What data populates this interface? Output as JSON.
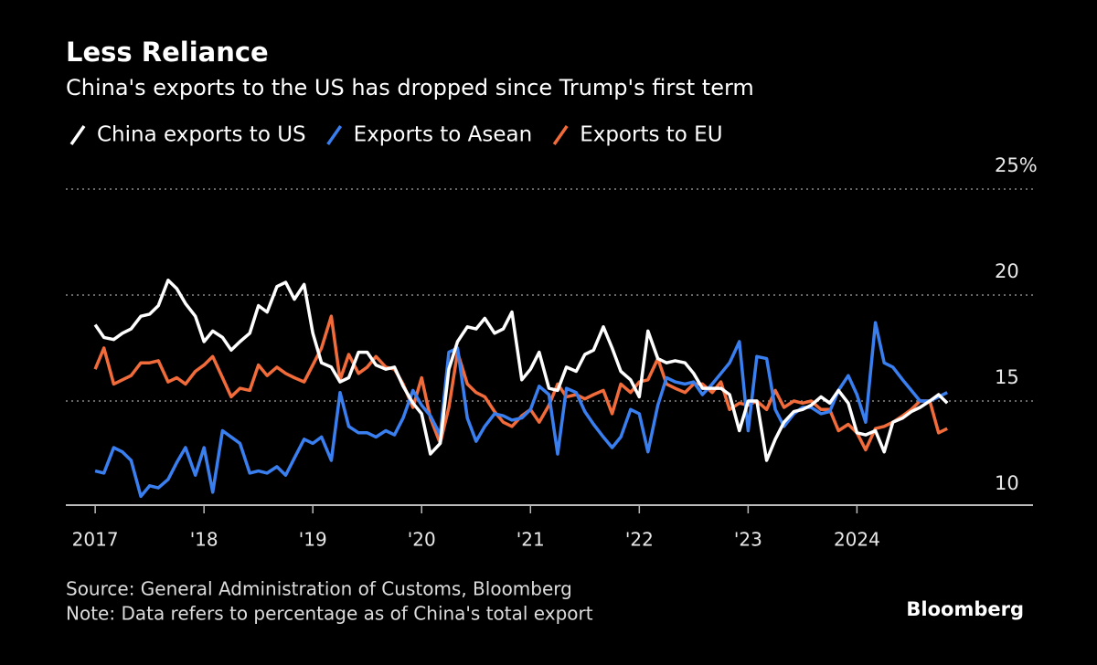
{
  "chart_data": {
    "type": "line",
    "title": "Less Reliance",
    "subtitle": "China's exports to the US has dropped since Trump's first term",
    "source": "Source: General Administration of Customs, Bloomberg",
    "note": "Note: Data refers to percentage as of China's total export",
    "brand": "Bloomberg",
    "x": [
      2017,
      2017.08,
      2017.17,
      2017.25,
      2017.33,
      2017.42,
      2017.5,
      2017.58,
      2017.67,
      2017.75,
      2017.83,
      2017.92,
      2018,
      2018.08,
      2018.17,
      2018.25,
      2018.33,
      2018.42,
      2018.5,
      2018.58,
      2018.67,
      2018.75,
      2018.83,
      2018.92,
      2019,
      2019.08,
      2019.17,
      2019.25,
      2019.33,
      2019.42,
      2019.5,
      2019.58,
      2019.67,
      2019.75,
      2019.83,
      2019.92,
      2020,
      2020.08,
      2020.17,
      2020.25,
      2020.33,
      2020.42,
      2020.5,
      2020.58,
      2020.67,
      2020.75,
      2020.83,
      2020.92,
      2021,
      2021.08,
      2021.17,
      2021.25,
      2021.33,
      2021.42,
      2021.5,
      2021.58,
      2021.67,
      2021.75,
      2021.83,
      2021.92,
      2022,
      2022.08,
      2022.17,
      2022.25,
      2022.33,
      2022.42,
      2022.5,
      2022.58,
      2022.67,
      2022.75,
      2022.83,
      2022.92,
      2023,
      2023.08,
      2023.17,
      2023.25,
      2023.33,
      2023.42,
      2023.5,
      2023.58,
      2023.67,
      2023.75,
      2023.83,
      2023.92,
      2024,
      2024.08,
      2024.17,
      2024.25,
      2024.33,
      2024.42,
      2024.5,
      2024.58,
      2024.67,
      2024.75,
      2024.83
    ],
    "series": [
      {
        "name": "China exports to US",
        "color": "#ffffff",
        "values": [
          18.6,
          18.0,
          17.9,
          18.2,
          18.4,
          19.0,
          19.1,
          19.5,
          20.7,
          20.3,
          19.6,
          19.0,
          17.8,
          18.3,
          18.0,
          17.4,
          17.8,
          18.2,
          19.5,
          19.2,
          20.4,
          20.6,
          19.8,
          20.5,
          18.2,
          16.8,
          16.6,
          15.9,
          16.1,
          17.3,
          17.3,
          16.7,
          16.5,
          16.6,
          15.7,
          14.9,
          14.4,
          12.5,
          13.0,
          16.5,
          17.8,
          18.5,
          18.4,
          18.9,
          18.2,
          18.4,
          19.2,
          16.0,
          16.5,
          17.3,
          15.6,
          15.5,
          16.6,
          16.4,
          17.2,
          17.4,
          18.5,
          17.5,
          16.4,
          16.0,
          15.2,
          18.3,
          17.0,
          16.8,
          16.9,
          16.8,
          16.3,
          15.6,
          15.6,
          15.6,
          15.3,
          13.6,
          15.0,
          15.0,
          12.2,
          13.2,
          14.0,
          14.5,
          14.6,
          14.8,
          15.2,
          14.9,
          15.5,
          14.9,
          13.5,
          13.4,
          13.6,
          12.6,
          14.0,
          14.2,
          14.5,
          14.7,
          15.0,
          15.3,
          14.9
        ]
      },
      {
        "name": "Exports to Asean",
        "color": "#3a7ff0",
        "values": [
          11.7,
          11.6,
          12.8,
          12.6,
          12.2,
          10.5,
          11.0,
          10.9,
          11.3,
          12.1,
          12.8,
          11.5,
          12.8,
          10.7,
          13.6,
          13.3,
          13.0,
          11.6,
          11.7,
          11.6,
          11.9,
          11.5,
          12.3,
          13.2,
          13.0,
          13.3,
          12.2,
          15.4,
          13.8,
          13.5,
          13.5,
          13.3,
          13.6,
          13.4,
          14.2,
          15.5,
          14.8,
          14.3,
          13.4,
          17.3,
          17.5,
          14.2,
          13.1,
          13.8,
          14.4,
          14.3,
          14.1,
          14.2,
          14.6,
          15.7,
          15.3,
          12.5,
          15.6,
          15.4,
          14.5,
          13.9,
          13.3,
          12.8,
          13.3,
          14.6,
          14.4,
          12.6,
          14.8,
          16.1,
          15.9,
          15.8,
          15.9,
          15.3,
          15.8,
          16.3,
          16.8,
          17.8,
          13.6,
          17.1,
          17.0,
          14.6,
          13.8,
          14.4,
          14.7,
          14.7,
          14.4,
          14.5,
          15.5,
          16.2,
          15.3,
          14.0,
          18.7,
          16.8,
          16.6,
          16.0,
          15.5,
          15.0,
          15.0,
          15.2,
          15.4
        ]
      },
      {
        "name": "Exports to EU",
        "color": "#f26b3a",
        "values": [
          16.5,
          17.5,
          15.8,
          16.0,
          16.2,
          16.8,
          16.8,
          16.9,
          15.9,
          16.1,
          15.8,
          16.4,
          16.7,
          17.1,
          16.1,
          15.2,
          15.6,
          15.5,
          16.7,
          16.2,
          16.6,
          16.3,
          16.1,
          15.9,
          16.7,
          17.5,
          19.0,
          16.0,
          17.2,
          16.3,
          16.6,
          17.1,
          16.6,
          16.5,
          15.8,
          14.7,
          16.1,
          14.2,
          13.0,
          14.7,
          17.3,
          15.8,
          15.4,
          15.2,
          14.5,
          14.0,
          13.8,
          14.3,
          14.6,
          14.0,
          14.8,
          15.8,
          15.2,
          15.3,
          15.1,
          15.3,
          15.5,
          14.4,
          15.8,
          15.4,
          15.9,
          16.0,
          17.0,
          15.8,
          15.6,
          15.4,
          15.8,
          15.8,
          15.4,
          15.9,
          14.6,
          14.9,
          14.8,
          15.0,
          14.6,
          15.5,
          14.7,
          15.0,
          14.9,
          15.0,
          14.6,
          14.6,
          13.6,
          13.9,
          13.5,
          12.7,
          13.7,
          13.8,
          14.0,
          14.3,
          14.6,
          15.0,
          15.0,
          13.5,
          13.7
        ]
      }
    ],
    "xlim": [
      2016.73,
      2025.24
    ],
    "xticks": [
      {
        "value": 2017,
        "label": "2017"
      },
      {
        "value": 2018,
        "label": "'18"
      },
      {
        "value": 2019,
        "label": "'19"
      },
      {
        "value": 2020,
        "label": "'20"
      },
      {
        "value": 2021,
        "label": "'21"
      },
      {
        "value": 2022,
        "label": "'22"
      },
      {
        "value": 2023,
        "label": "'23"
      },
      {
        "value": 2024,
        "label": "2024"
      }
    ],
    "ylim": [
      10,
      25
    ],
    "yticks": [
      10,
      15,
      20,
      {
        "value": 25,
        "label": "25%"
      }
    ],
    "grid": true
  }
}
